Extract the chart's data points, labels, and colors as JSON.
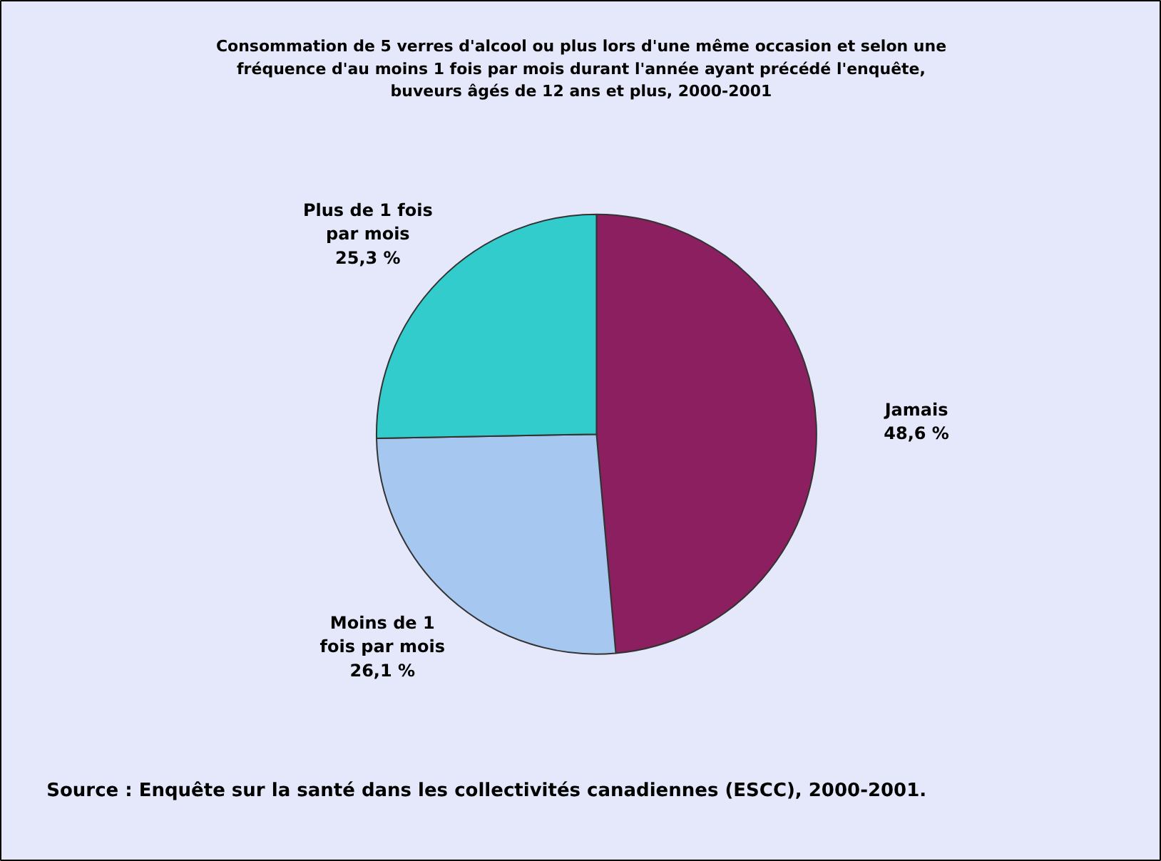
{
  "chart_data": {
    "type": "pie",
    "title": "Consommation de 5 verres d'alcool ou plus lors d'une même occasion et selon une fréquence d'au moins 1 fois par mois durant l'année ayant précédé l'enquête, buveurs âgés de 12 ans et plus, 2000-2001",
    "categories": [
      "Jamais",
      "Moins de 1 fois par mois",
      "Plus de 1 fois par mois"
    ],
    "values": [
      48.6,
      26.1,
      25.3
    ],
    "value_labels": [
      "48,6 %",
      "26,1 %",
      "25,3 %"
    ],
    "colors": [
      "#8b1f5f",
      "#a6c8f0",
      "#33cccc"
    ],
    "annotations": [
      "Source : Enquête sur la santé dans les collectivités canadiennes (ESCC),  2000-2001."
    ]
  }
}
